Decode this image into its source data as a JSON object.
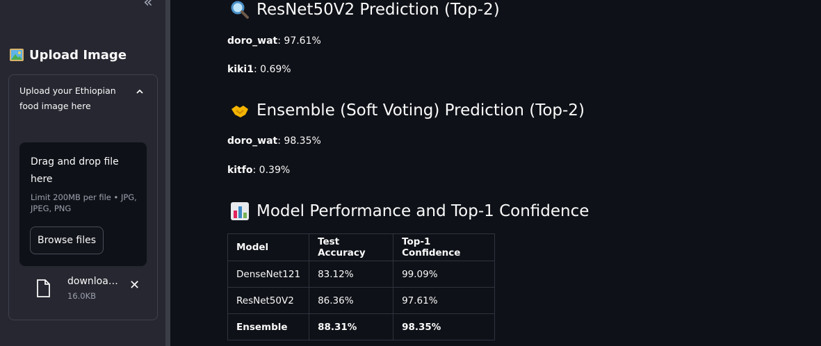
{
  "sidebar": {
    "collapse_glyph": "«",
    "title": "Upload Image",
    "title_icon": "framed-picture-icon",
    "uploader": {
      "label": "Upload your Ethiopian food image here",
      "dropzone_title": "Drag and drop file here",
      "dropzone_limit": "Limit 200MB per file • JPG, JPEG, PNG",
      "browse_label": "Browse files",
      "file": {
        "name": "download.jpg",
        "size": "16.0KB"
      }
    }
  },
  "main": {
    "resnet": {
      "title": "ResNet50V2 Prediction (Top-2)",
      "icon": "magnifier-icon",
      "preds": [
        {
          "label": "doro_wat",
          "value": ": 97.61%"
        },
        {
          "label": "kiki1",
          "value": ": 0.69%"
        }
      ]
    },
    "ensemble": {
      "title": "Ensemble (Soft Voting) Prediction (Top-2)",
      "icon": "handshake-icon",
      "preds": [
        {
          "label": "doro_wat",
          "value": ": 98.35%"
        },
        {
          "label": "kitfo",
          "value": ": 0.39%"
        }
      ]
    },
    "performance": {
      "title": "Model Performance and Top-1 Confidence",
      "icon": "bar-chart-icon",
      "headers": [
        "Model",
        "Test Accuracy",
        "Top-1 Confidence"
      ],
      "rows": [
        [
          "DenseNet121",
          "83.12%",
          "99.09%"
        ],
        [
          "ResNet50V2",
          "86.36%",
          "97.61%"
        ],
        [
          "Ensemble",
          "88.31%",
          "98.35%"
        ]
      ]
    }
  },
  "colors": {
    "background": "#0e1117",
    "sidebar": "#262730",
    "text": "#fafafa",
    "muted": "#9da1ad"
  }
}
